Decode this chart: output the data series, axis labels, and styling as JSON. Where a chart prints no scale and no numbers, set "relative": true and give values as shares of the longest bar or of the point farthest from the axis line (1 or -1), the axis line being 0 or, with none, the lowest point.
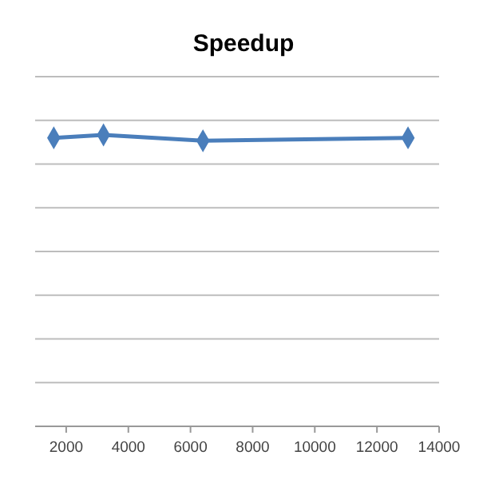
{
  "chart_data": {
    "type": "line",
    "title": "Speedup",
    "relative": true,
    "x": [
      1600,
      3200,
      6400,
      13000
    ],
    "series": [
      {
        "color": "#4a7ebb",
        "values": [
          0.99,
          1,
          0.98,
          0.99
        ]
      }
    ],
    "xlim": [
      1000,
      14000
    ],
    "xticks": [
      2000,
      4000,
      6000,
      8000,
      10000,
      12000,
      14000
    ],
    "grid": "y",
    "marker": "diamond"
  }
}
